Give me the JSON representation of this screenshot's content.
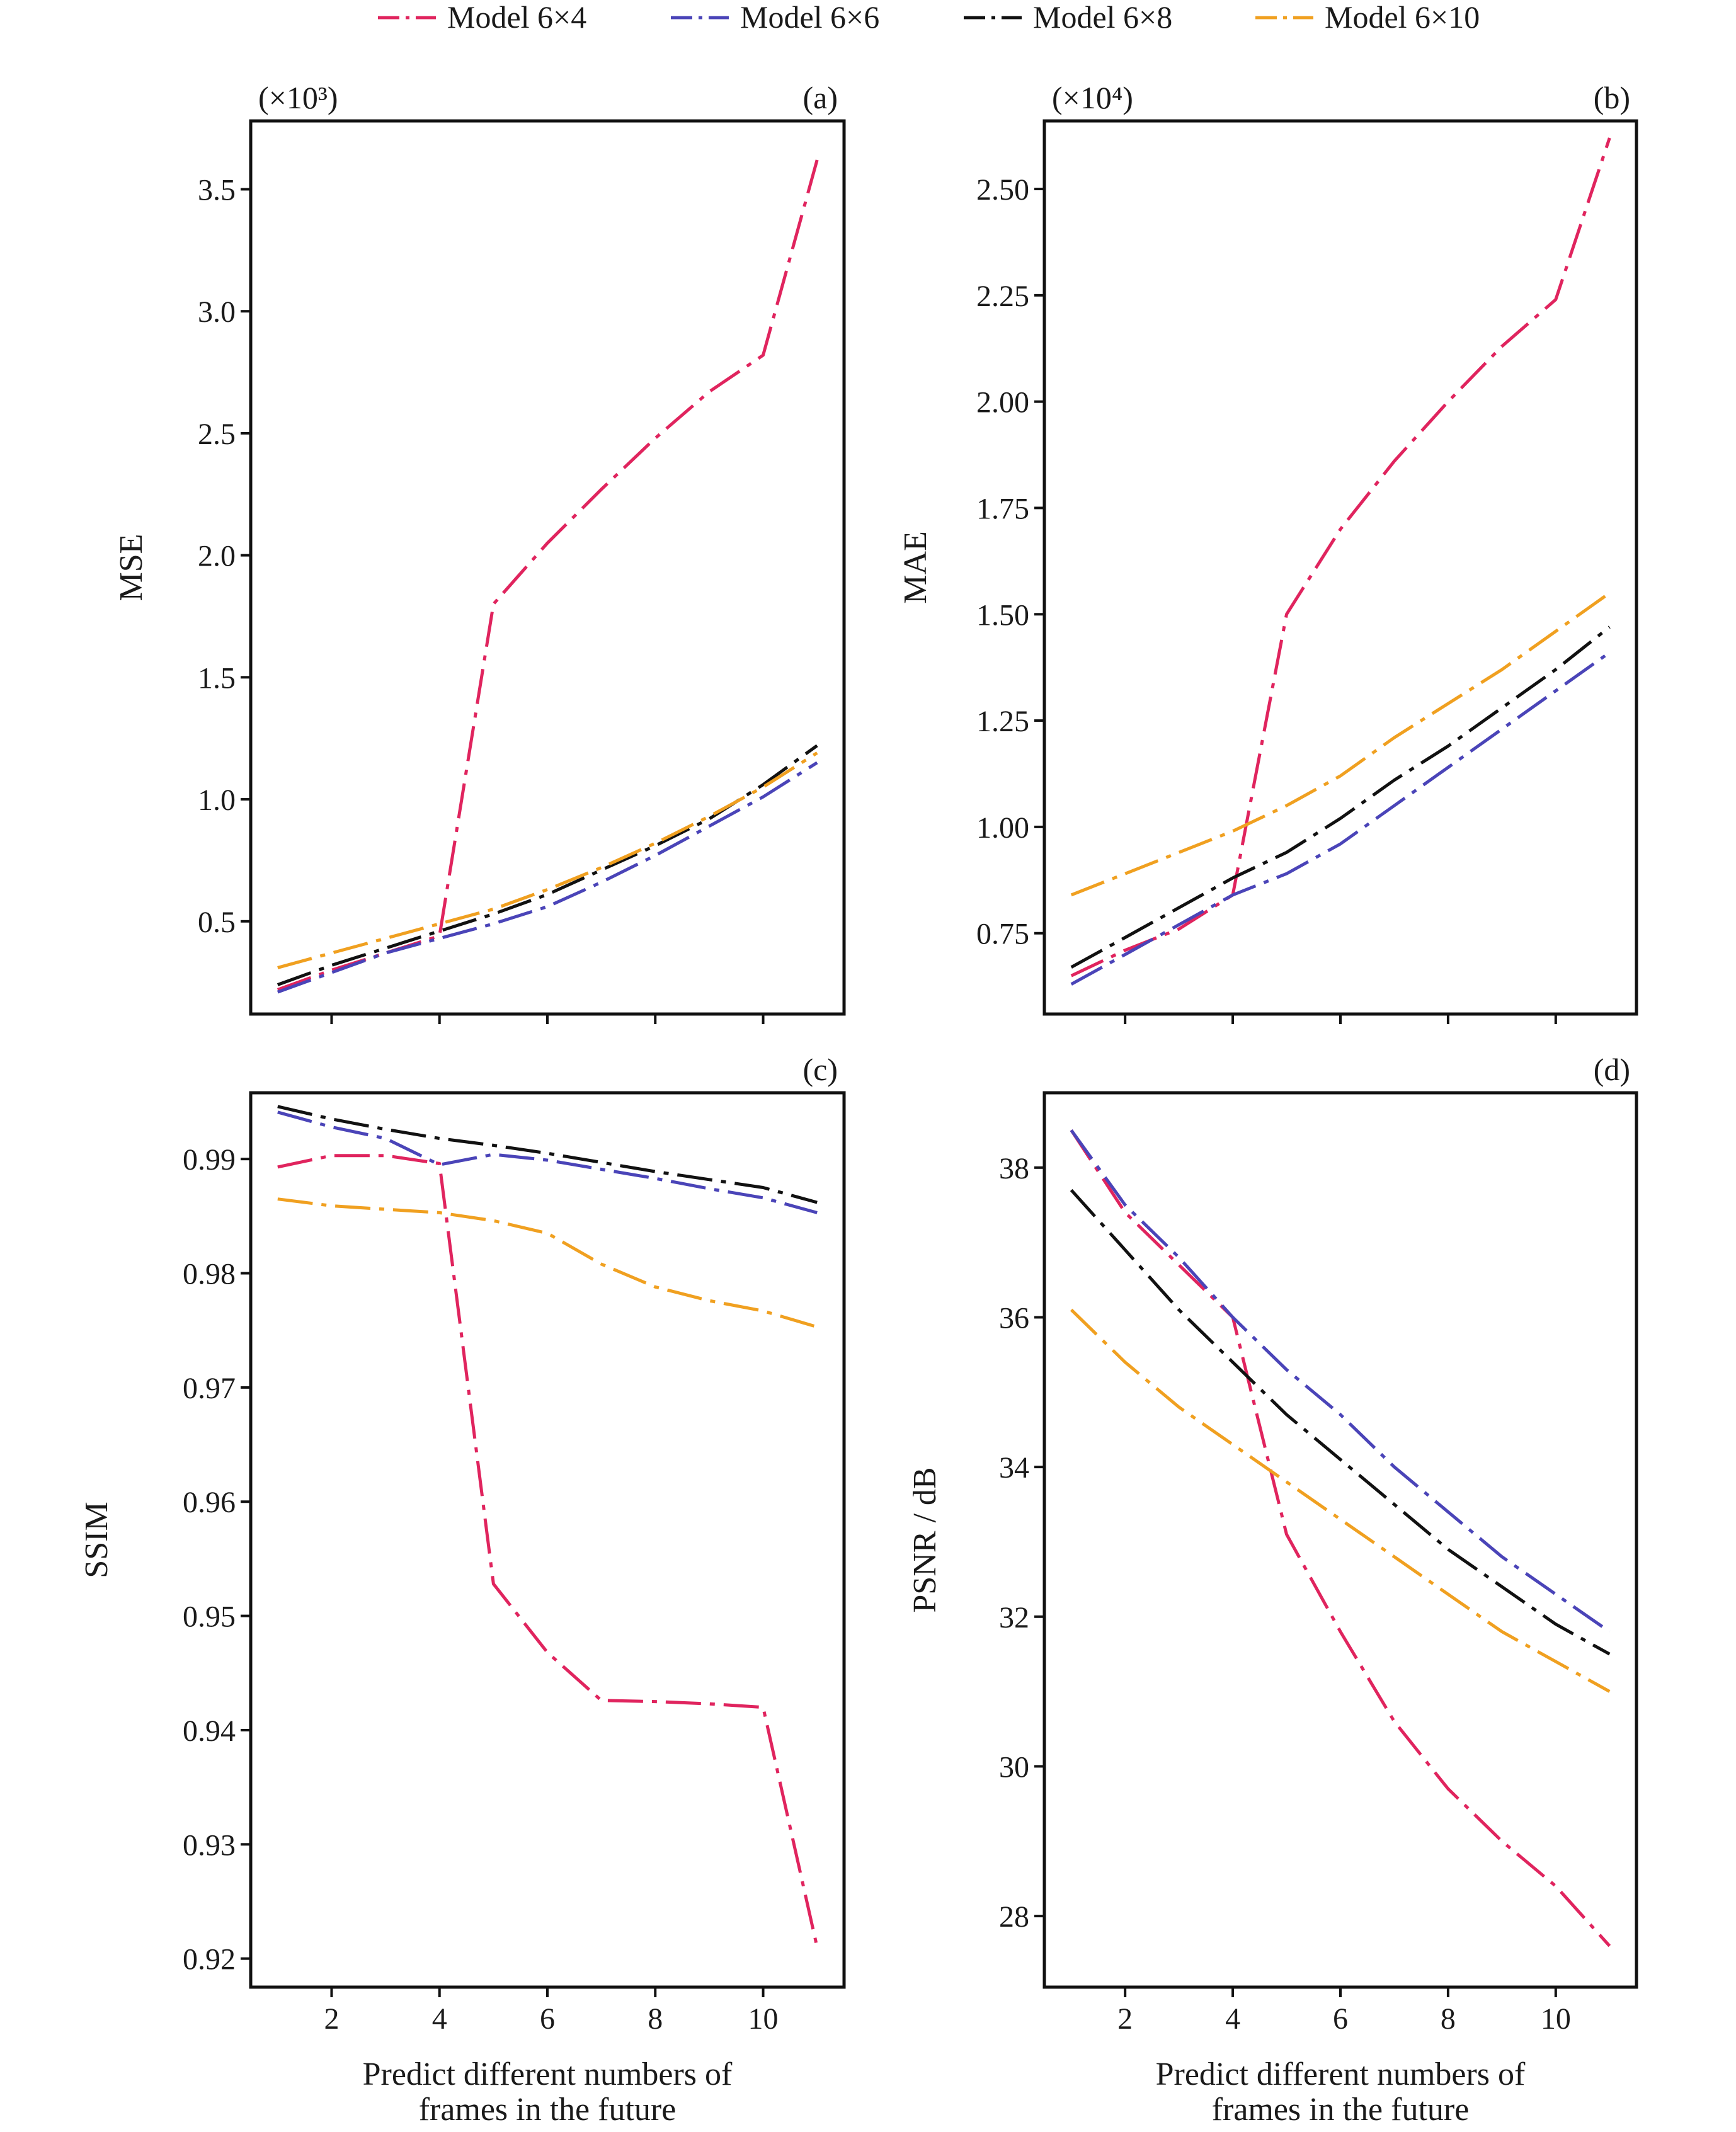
{
  "legend": {
    "items": [
      {
        "label": "Model 6×4",
        "color": "#e0245e"
      },
      {
        "label": "Model 6×6",
        "color": "#4a44b8"
      },
      {
        "label": "Model 6×8",
        "color": "#111111"
      },
      {
        "label": "Model 6×10",
        "color": "#f0a020"
      }
    ],
    "placement": "top"
  },
  "chart_data": [
    {
      "type": "line",
      "panel": "(a)",
      "multiplier": "(×10³)",
      "ylabel": "MSE",
      "xlabel": "",
      "xlim": [
        0.5,
        11.5
      ],
      "ylim": [
        0.12,
        3.78
      ],
      "xticks": [
        2,
        4,
        6,
        8,
        10
      ],
      "xtick_labels": false,
      "yticks": [
        0.5,
        1.0,
        1.5,
        2.0,
        2.5,
        3.0,
        3.5
      ],
      "ytick_labels": [
        "0.5",
        "1.0",
        "1.5",
        "2.0",
        "2.5",
        "3.0",
        "3.5"
      ],
      "x": [
        1,
        2,
        3,
        4,
        5,
        6,
        7,
        8,
        9,
        10,
        11
      ],
      "series": [
        {
          "name": "Model 6×4",
          "values": [
            0.22,
            0.3,
            0.37,
            0.44,
            1.8,
            2.05,
            2.27,
            2.48,
            2.67,
            2.82,
            3.62
          ]
        },
        {
          "name": "Model 6×6",
          "values": [
            0.21,
            0.29,
            0.37,
            0.43,
            0.49,
            0.56,
            0.66,
            0.77,
            0.89,
            1.01,
            1.15
          ]
        },
        {
          "name": "Model 6×8",
          "values": [
            0.24,
            0.32,
            0.39,
            0.46,
            0.53,
            0.61,
            0.71,
            0.81,
            0.92,
            1.06,
            1.22
          ]
        },
        {
          "name": "Model 6×10",
          "values": [
            0.31,
            0.37,
            0.43,
            0.49,
            0.55,
            0.63,
            0.72,
            0.82,
            0.93,
            1.05,
            1.19
          ]
        }
      ]
    },
    {
      "type": "line",
      "panel": "(b)",
      "multiplier": "(×10⁴)",
      "ylabel": "MAE",
      "xlabel": "",
      "xlim": [
        0.5,
        11.5
      ],
      "ylim": [
        0.56,
        2.66
      ],
      "xticks": [
        2,
        4,
        6,
        8,
        10
      ],
      "xtick_labels": false,
      "yticks": [
        0.75,
        1.0,
        1.25,
        1.5,
        1.75,
        2.0,
        2.25,
        2.5
      ],
      "ytick_labels": [
        "0.75",
        "1.00",
        "1.25",
        "1.50",
        "1.75",
        "2.00",
        "2.25",
        "2.50"
      ],
      "x": [
        1,
        2,
        3,
        4,
        5,
        6,
        7,
        8,
        9,
        10,
        11
      ],
      "series": [
        {
          "name": "Model 6×4",
          "values": [
            0.65,
            0.71,
            0.76,
            0.84,
            1.5,
            1.7,
            1.86,
            2.0,
            2.13,
            2.24,
            2.62
          ]
        },
        {
          "name": "Model 6×6",
          "values": [
            0.63,
            0.7,
            0.77,
            0.84,
            0.89,
            0.96,
            1.05,
            1.14,
            1.23,
            1.32,
            1.41
          ]
        },
        {
          "name": "Model 6×8",
          "values": [
            0.67,
            0.74,
            0.81,
            0.88,
            0.94,
            1.02,
            1.11,
            1.19,
            1.28,
            1.37,
            1.47
          ]
        },
        {
          "name": "Model 6×10",
          "values": [
            0.84,
            0.89,
            0.94,
            0.99,
            1.05,
            1.12,
            1.21,
            1.29,
            1.37,
            1.46,
            1.55
          ]
        }
      ]
    },
    {
      "type": "line",
      "panel": "(c)",
      "ylabel": "SSIM",
      "xlabel": "Predict different numbers of frames in the future",
      "xlim": [
        0.5,
        11.5
      ],
      "ylim": [
        0.9175,
        0.9958
      ],
      "xticks": [
        2,
        4,
        6,
        8,
        10
      ],
      "xtick_labels": true,
      "yticks": [
        0.92,
        0.93,
        0.94,
        0.95,
        0.96,
        0.97,
        0.98,
        0.99
      ],
      "ytick_labels": [
        "0.92",
        "0.93",
        "0.94",
        "0.95",
        "0.96",
        "0.97",
        "0.98",
        "0.99"
      ],
      "x": [
        1,
        2,
        3,
        4,
        5,
        6,
        7,
        8,
        9,
        10,
        11
      ],
      "series": [
        {
          "name": "Model 6×4",
          "values": [
            0.9893,
            0.9903,
            0.9903,
            0.9896,
            0.9528,
            0.9468,
            0.9426,
            0.9425,
            0.9423,
            0.942,
            0.921
          ]
        },
        {
          "name": "Model 6×6",
          "values": [
            0.9941,
            0.9928,
            0.9918,
            0.9895,
            0.9904,
            0.9899,
            0.9891,
            0.9883,
            0.9874,
            0.9866,
            0.9853
          ]
        },
        {
          "name": "Model 6×8",
          "values": [
            0.9946,
            0.9935,
            0.9926,
            0.9918,
            0.9912,
            0.9905,
            0.9897,
            0.9889,
            0.9882,
            0.9875,
            0.9862
          ]
        },
        {
          "name": "Model 6×10",
          "values": [
            0.9865,
            0.9859,
            0.9856,
            0.9853,
            0.9846,
            0.9835,
            0.9808,
            0.9788,
            0.9776,
            0.9767,
            0.9753
          ]
        }
      ]
    },
    {
      "type": "line",
      "panel": "(d)",
      "ylabel": "PSNR / dB",
      "xlabel": "Predict different numbers of frames in the future",
      "xlim": [
        0.5,
        11.5
      ],
      "ylim": [
        27.05,
        39.0
      ],
      "xticks": [
        2,
        4,
        6,
        8,
        10
      ],
      "xtick_labels": true,
      "yticks": [
        28,
        30,
        32,
        34,
        36,
        38
      ],
      "ytick_labels": [
        "28",
        "30",
        "32",
        "34",
        "36",
        "38"
      ],
      "x": [
        1,
        2,
        3,
        4,
        5,
        6,
        7,
        8,
        9,
        10,
        11
      ],
      "series": [
        {
          "name": "Model 6×4",
          "values": [
            38.5,
            37.4,
            36.7,
            36.0,
            33.1,
            31.8,
            30.6,
            29.7,
            29.0,
            28.4,
            27.6
          ]
        },
        {
          "name": "Model 6×6",
          "values": [
            38.5,
            37.5,
            36.8,
            36.0,
            35.3,
            34.7,
            34.0,
            33.4,
            32.8,
            32.3,
            31.8
          ]
        },
        {
          "name": "Model 6×8",
          "values": [
            37.7,
            36.9,
            36.1,
            35.4,
            34.7,
            34.1,
            33.5,
            32.9,
            32.4,
            31.9,
            31.5
          ]
        },
        {
          "name": "Model 6×10",
          "values": [
            36.1,
            35.4,
            34.8,
            34.3,
            33.8,
            33.3,
            32.8,
            32.3,
            31.8,
            31.4,
            31.0
          ]
        }
      ]
    }
  ]
}
